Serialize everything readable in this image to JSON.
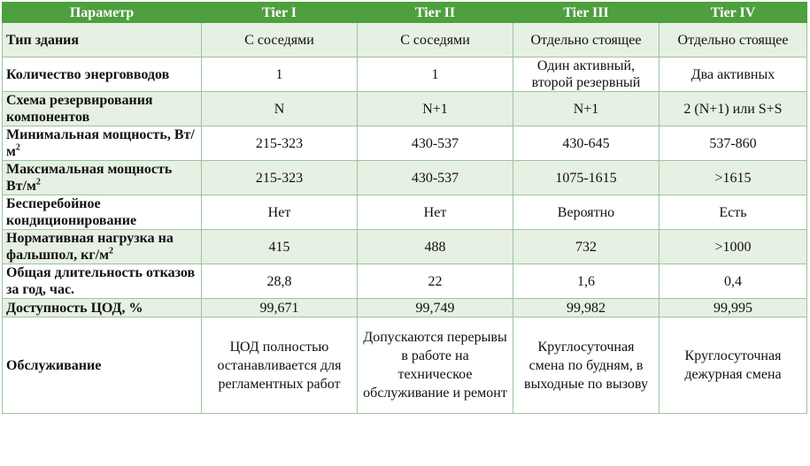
{
  "table": {
    "headers": [
      "Параметр",
      "Tier I",
      "Tier II",
      "Tier III",
      "Tier IV"
    ],
    "rows": [
      {
        "param": "Тип здания",
        "values": [
          "С соседями",
          "С соседями",
          "Отдельно стоящее",
          "Отдельно стоящее"
        ]
      },
      {
        "param": "Количество энерговводов",
        "values": [
          "1",
          "1",
          "Один активный, второй резервный",
          "Два активных"
        ]
      },
      {
        "param": "Схема резервирования компонентов",
        "values": [
          "N",
          "N+1",
          "N+1",
          "2 (N+1) или S+S"
        ]
      },
      {
        "param_main": "Минимальная мощность, Вт/м",
        "param_sup": "2",
        "values": [
          "215-323",
          "430-537",
          "430-645",
          "537-860"
        ]
      },
      {
        "param_main": "Максимальная мощность Вт/м",
        "param_sup": "2",
        "values": [
          "215-323",
          "430-537",
          "1075-1615",
          ">1615"
        ]
      },
      {
        "param": "Бесперебойное кондиционирование",
        "values": [
          "Нет",
          "Нет",
          "Вероятно",
          "Есть"
        ]
      },
      {
        "param_main": "Нормативная нагрузка на фальшпол, кг/м",
        "param_sup": "2",
        "values": [
          "415",
          "488",
          "732",
          ">1000"
        ]
      },
      {
        "param": "Общая длительность отказов за год, час.",
        "values": [
          "28,8",
          "22",
          "1,6",
          "0,4"
        ]
      },
      {
        "param": "Доступность ЦОД, %",
        "values": [
          "99,671",
          "99,749",
          "99,982",
          "99,995"
        ]
      },
      {
        "param": "Обслуживание",
        "values": [
          "ЦОД полностью останавливается для регламентных работ",
          "Допускаются перерывы в работе на техническое обслуживание и ремонт",
          "Круглосуточная смена по будням, в выходные по вызову",
          "Круглосуточная дежурная смена"
        ]
      }
    ]
  }
}
